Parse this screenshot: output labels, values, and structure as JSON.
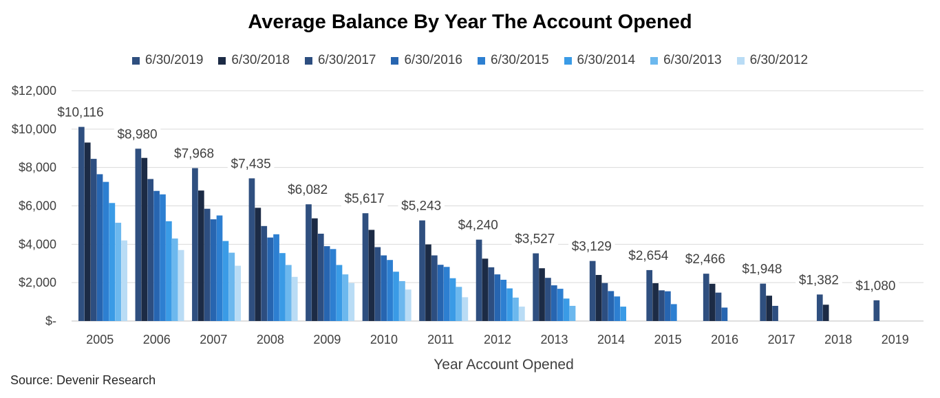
{
  "chart_data": {
    "type": "bar",
    "title": "Average Balance By Year The Account Opened",
    "xlabel": "Year Account Opened",
    "ylabel": "",
    "ylim": [
      0,
      12000
    ],
    "yticks": [
      0,
      2000,
      4000,
      6000,
      8000,
      10000,
      12000
    ],
    "ytick_labels": [
      "$-",
      "$2,000",
      "$4,000",
      "$6,000",
      "$8,000",
      "$10,000",
      "$12,000"
    ],
    "grid": true,
    "legend_position": "top",
    "categories": [
      "2005",
      "2006",
      "2007",
      "2008",
      "2009",
      "2010",
      "2011",
      "2012",
      "2013",
      "2014",
      "2015",
      "2016",
      "2017",
      "2018",
      "2019"
    ],
    "series": [
      {
        "name": "6/30/2019",
        "color": "#2f4f7f",
        "values": [
          10116,
          8980,
          7968,
          7435,
          6082,
          5617,
          5243,
          4240,
          3527,
          3129,
          2654,
          2466,
          1948,
          1382,
          1080
        ]
      },
      {
        "name": "6/30/2018",
        "color": "#1c2b45",
        "values": [
          9300,
          8500,
          6800,
          5900,
          5350,
          4750,
          3990,
          3250,
          2750,
          2400,
          1970,
          1940,
          1320,
          850,
          null
        ]
      },
      {
        "name": "6/30/2017",
        "color": "#2d4e80",
        "values": [
          8450,
          7400,
          5850,
          4950,
          4550,
          3850,
          3420,
          2800,
          2250,
          1980,
          1600,
          1480,
          790,
          null,
          null
        ]
      },
      {
        "name": "6/30/2016",
        "color": "#2765b0",
        "values": [
          7650,
          6780,
          5300,
          4350,
          3900,
          3420,
          2930,
          2430,
          1860,
          1560,
          1550,
          700,
          null,
          null,
          null
        ]
      },
      {
        "name": "6/30/2015",
        "color": "#2d7fd1",
        "values": [
          7250,
          6600,
          5500,
          4520,
          3750,
          3180,
          2820,
          2150,
          1680,
          1280,
          880,
          null,
          null,
          null,
          null
        ]
      },
      {
        "name": "6/30/2014",
        "color": "#3a9be6",
        "values": [
          6150,
          5200,
          4170,
          3540,
          2920,
          2570,
          2230,
          1700,
          1170,
          750,
          null,
          null,
          null,
          null,
          null
        ]
      },
      {
        "name": "6/30/2013",
        "color": "#6cb8ee",
        "values": [
          5120,
          4300,
          3560,
          2920,
          2430,
          2080,
          1780,
          1220,
          790,
          null,
          null,
          null,
          null,
          null,
          null
        ]
      },
      {
        "name": "6/30/2012",
        "color": "#b9dcf5",
        "values": [
          4200,
          3700,
          2880,
          2300,
          1980,
          1640,
          1240,
          750,
          null,
          null,
          null,
          null,
          null,
          null,
          null
        ]
      }
    ],
    "data_labels": [
      "$10,116",
      "$8,980",
      "$7,968",
      "$7,435",
      "$6,082",
      "$5,617",
      "$5,243",
      "$4,240",
      "$3,527",
      "$3,129",
      "$2,654",
      "$2,466",
      "$1,948",
      "$1,382",
      "$1,080"
    ]
  },
  "footer": {
    "source": "Source: Devenir Research"
  }
}
